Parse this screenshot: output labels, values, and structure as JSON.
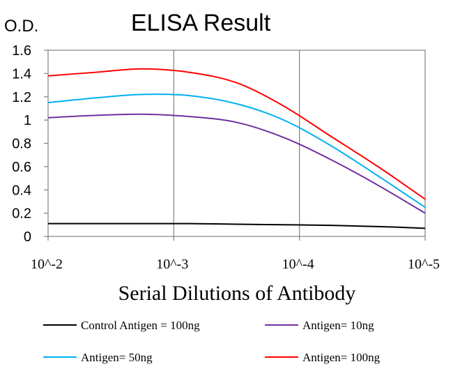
{
  "chart_data": {
    "type": "line",
    "title": "ELISA Result",
    "ylabel": "O.D.",
    "xlabel": "Serial Dilutions of Antibody",
    "x_tick_labels": [
      "10^-2",
      "10^-3",
      "10^-4",
      "10^-5"
    ],
    "x": [
      1,
      1.25,
      1.5,
      1.75,
      2,
      2.25,
      2.5,
      2.75,
      3
    ],
    "ylim": [
      0,
      1.6
    ],
    "y_ticks": [
      "0",
      "0.2",
      "0.4",
      "0.6",
      "0.8",
      "1",
      "1.2",
      "1.4",
      "1.6"
    ],
    "grid": "vertical lines at x ticks",
    "legend_position": "bottom",
    "series": [
      {
        "name": "Control Antigen = 100ng",
        "color": "#000000",
        "values": [
          0.11,
          0.11,
          0.11,
          0.11,
          0.105,
          0.1,
          0.095,
          0.085,
          0.07
        ]
      },
      {
        "name": "Antigen= 10ng",
        "color": "#7030a0",
        "values": [
          1.02,
          1.04,
          1.05,
          1.03,
          0.98,
          0.85,
          0.66,
          0.44,
          0.2
        ]
      },
      {
        "name": "Antigen= 50ng",
        "color": "#00b0f0",
        "values": [
          1.15,
          1.19,
          1.22,
          1.21,
          1.14,
          1.0,
          0.78,
          0.52,
          0.25
        ]
      },
      {
        "name": "Antigen= 100ng",
        "color": "#ff0000",
        "values": [
          1.38,
          1.41,
          1.44,
          1.41,
          1.32,
          1.12,
          0.86,
          0.6,
          0.32
        ]
      }
    ]
  }
}
